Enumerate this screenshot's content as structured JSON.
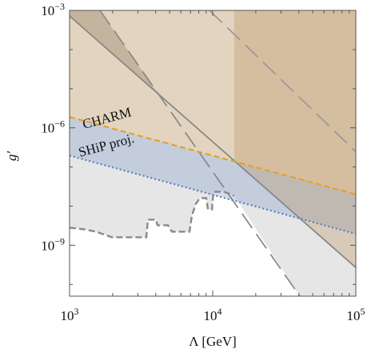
{
  "chart_data": {
    "type": "line",
    "x_label": "Λ [GeV]",
    "y_label": "g′",
    "xlog": true,
    "ylog": true,
    "xlim": [
      1000,
      100000
    ],
    "ylim": [
      5e-11,
      0.001
    ],
    "xticks": [
      {
        "value": 1000,
        "label": "103"
      },
      {
        "value": 10000,
        "label": "104"
      },
      {
        "value": 100000,
        "label": "105"
      }
    ],
    "yticks": [
      {
        "value": 0.001,
        "label": "10−3"
      },
      {
        "value": 1e-06,
        "label": "10−6"
      },
      {
        "value": 1e-09,
        "label": "10−9"
      }
    ],
    "xminorticks": [
      2000,
      3000,
      4000,
      5000,
      6000,
      7000,
      8000,
      9000,
      20000,
      30000,
      40000,
      50000,
      60000,
      70000,
      80000,
      90000
    ],
    "yminorticks": [
      0.0001,
      1e-05,
      1e-07,
      1e-08,
      1e-10
    ],
    "regions": [
      {
        "color": "#e6e6e6",
        "x": [
          1000,
          1261,
          1529,
          1978,
          3438,
          3528,
          4012,
          4117,
          4866,
          5190,
          6887,
          7155,
          7632,
          8139,
          9022,
          9257,
          9872,
          10130,
          11970,
          14150,
          40600,
          100000,
          100000,
          1000
        ],
        "values": [
          2.81e-09,
          2.56e-09,
          2.22e-09,
          1.6e-09,
          1.6e-09,
          4.5e-09,
          4.5e-09,
          3.24e-09,
          3.24e-09,
          2.22e-09,
          2.22e-09,
          5.69e-09,
          1.15e-08,
          1.6e-08,
          1.6e-08,
          8.28e-09,
          8.28e-09,
          2.33e-08,
          2.33e-08,
          1.84e-08,
          5e-11,
          5e-11,
          0.001,
          0.001
        ]
      },
      {
        "color": "rgba(225,190,145,0.45)",
        "x": [
          1000,
          100000,
          100000,
          1000
        ],
        "values": [
          1.9e-06,
          2e-08,
          0.001,
          0.001
        ]
      },
      {
        "color": "rgba(140,165,205,0.38)",
        "x": [
          1000,
          100000,
          100000,
          1000
        ],
        "values": [
          1.9e-06,
          2e-08,
          1.95e-09,
          1.95e-07
        ]
      },
      {
        "color": "rgba(140,120,95,0.35)",
        "x": [
          1000,
          1630,
          4210,
          1000
        ],
        "values": [
          0.001,
          0.001,
          6.9e-06,
          0.00072
        ]
      },
      {
        "color": "rgba(185,150,100,0.35)",
        "x": [
          14150,
          100000,
          100000,
          14150
        ],
        "values": [
          0.001,
          0.001,
          2.7e-10,
          1.45e-07
        ]
      }
    ],
    "series": [
      {
        "color": "#8a8a8a",
        "style": "dashed-thick",
        "x": [
          1000,
          1261,
          1529,
          1978,
          3438,
          3528,
          4012,
          4117,
          4866,
          5190,
          6887,
          7155,
          7632,
          8139,
          9022,
          9257,
          9872,
          10130,
          11970,
          14150
        ],
        "values": [
          2.81e-09,
          2.56e-09,
          2.22e-09,
          1.6e-09,
          1.6e-09,
          4.5e-09,
          4.5e-09,
          3.24e-09,
          3.24e-09,
          2.22e-09,
          2.22e-09,
          5.69e-09,
          1.15e-08,
          1.6e-08,
          1.6e-08,
          8.28e-09,
          8.28e-09,
          2.33e-08,
          2.33e-08,
          1.84e-08
        ]
      },
      {
        "color": "#8a8a8a",
        "style": "long-dashed",
        "x": [
          1630,
          40600
        ],
        "values": [
          0.001,
          5e-11
        ]
      },
      {
        "color": "#9a9a9a",
        "style": "long-dashed",
        "x": [
          9500,
          100000
        ],
        "values": [
          0.001,
          2.45e-07
        ]
      },
      {
        "color": "#888888",
        "style": "solid",
        "x": [
          1000,
          100000
        ],
        "values": [
          0.00072,
          2.7e-10
        ]
      },
      {
        "color": "#e3a12f",
        "style": "dashed",
        "x": [
          1000,
          100000
        ],
        "values": [
          1.9e-06,
          2e-08
        ]
      },
      {
        "color": "#5a7fc0",
        "style": "dotted",
        "x": [
          1000,
          100000
        ],
        "values": [
          1.95e-07,
          1.95e-09
        ]
      }
    ],
    "annotations": [
      "CHARM",
      "SHiP proj."
    ]
  }
}
